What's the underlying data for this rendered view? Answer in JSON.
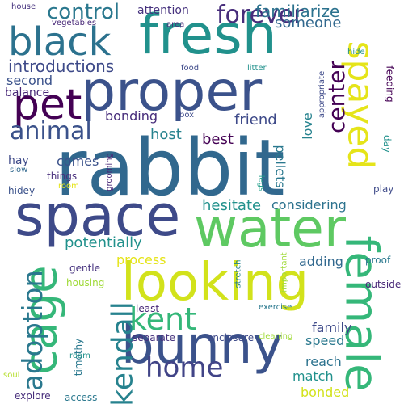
{
  "words": [
    {
      "text": "rabbit",
      "color": "#31688e"
    },
    {
      "text": "space",
      "color": "#3e4a89"
    },
    {
      "text": "proper",
      "color": "#3b528b"
    },
    {
      "text": "fresh",
      "color": "#21918c"
    },
    {
      "text": "water",
      "color": "#5ec962"
    },
    {
      "text": "looking",
      "color": "#d2e21b"
    },
    {
      "text": "bunny",
      "color": "#3b528b"
    },
    {
      "text": "black",
      "color": "#2c728e"
    },
    {
      "text": "pet",
      "color": "#440154"
    },
    {
      "text": "cage",
      "color": "#35b779"
    },
    {
      "text": "female",
      "color": "#35b779"
    },
    {
      "text": "spayed",
      "color": "#e5e419"
    },
    {
      "text": "adoption",
      "color": "#35b779"
    },
    {
      "text": "kendall",
      "color": "#414487"
    },
    {
      "text": "center",
      "color": "#2a788e"
    },
    {
      "text": "kent",
      "color": "#26828e"
    },
    {
      "text": "home",
      "color": "#472d7b"
    },
    {
      "text": "forever",
      "color": "#3b528b"
    },
    {
      "text": "animal",
      "color": "#440154"
    },
    {
      "text": "control",
      "color": "#2a788e"
    },
    {
      "text": "introductions",
      "color": "#3e4a89"
    },
    {
      "text": "familiarize",
      "color": "#2c728e"
    },
    {
      "text": "someone",
      "color": "#31688e"
    },
    {
      "text": "attention",
      "color": "#46327e"
    },
    {
      "text": "second",
      "color": "#3b528b"
    },
    {
      "text": "balance",
      "color": "#482878"
    },
    {
      "text": "bonding",
      "color": "#472d7b"
    },
    {
      "text": "host",
      "color": "#26828e"
    },
    {
      "text": "best",
      "color": "#440154"
    },
    {
      "text": "friend",
      "color": "#3e4a89"
    },
    {
      "text": "love",
      "color": "#26828e"
    },
    {
      "text": "hesitate",
      "color": "#21918c"
    },
    {
      "text": "considering",
      "color": "#2c728e"
    },
    {
      "text": "potentially",
      "color": "#21918c"
    },
    {
      "text": "process",
      "color": "#e5e419"
    },
    {
      "text": "adding",
      "color": "#31688e"
    },
    {
      "text": "family",
      "color": "#3e4a89"
    },
    {
      "text": "speed",
      "color": "#2a788e"
    },
    {
      "text": "reach",
      "color": "#2c728e"
    },
    {
      "text": "match",
      "color": "#21918c"
    },
    {
      "text": "bonded",
      "color": "#d2e21b"
    },
    {
      "text": "pellets",
      "color": "#2a788e"
    },
    {
      "text": "feeding",
      "color": "#440154"
    },
    {
      "text": "comes",
      "color": "#3b528b"
    },
    {
      "text": "hay",
      "color": "#3e4a89"
    },
    {
      "text": "things",
      "color": "#472d7b"
    },
    {
      "text": "slow",
      "color": "#31688e"
    },
    {
      "text": "hidey",
      "color": "#3b528b"
    },
    {
      "text": "room",
      "color": "#e5e419"
    },
    {
      "text": "grooming",
      "color": "#482878"
    },
    {
      "text": "legs",
      "color": "#1f9e89"
    },
    {
      "text": "day",
      "color": "#21918c"
    },
    {
      "text": "play",
      "color": "#3e4a89"
    },
    {
      "text": "proof",
      "color": "#2a788e"
    },
    {
      "text": "outside",
      "color": "#482878"
    },
    {
      "text": "stretch",
      "color": "#26828e"
    },
    {
      "text": "important",
      "color": "#a0da39"
    },
    {
      "text": "exercise",
      "color": "#2a788e"
    },
    {
      "text": "least",
      "color": "#482878"
    },
    {
      "text": "gentle",
      "color": "#46327e"
    },
    {
      "text": "housing",
      "color": "#a0da39"
    },
    {
      "text": "timothy",
      "color": "#2a788e"
    },
    {
      "text": "separate",
      "color": "#46327e"
    },
    {
      "text": "enclosure",
      "color": "#3e4a89"
    },
    {
      "text": "cleaning",
      "color": "#a0da39"
    },
    {
      "text": "roam",
      "color": "#21918c"
    },
    {
      "text": "soul",
      "color": "#b5de2b"
    },
    {
      "text": "explore",
      "color": "#472d7b"
    },
    {
      "text": "access",
      "color": "#2a788e"
    },
    {
      "text": "house",
      "color": "#46327e"
    },
    {
      "text": "vegetables",
      "color": "#482878"
    },
    {
      "text": "area",
      "color": "#472d7b"
    },
    {
      "text": "food",
      "color": "#3e4a89"
    },
    {
      "text": "litter",
      "color": "#21918c"
    },
    {
      "text": "appropriate",
      "color": "#3e4a89"
    },
    {
      "text": "box",
      "color": "#3e4a89"
    },
    {
      "text": "hide",
      "color": "#21918c"
    }
  ]
}
